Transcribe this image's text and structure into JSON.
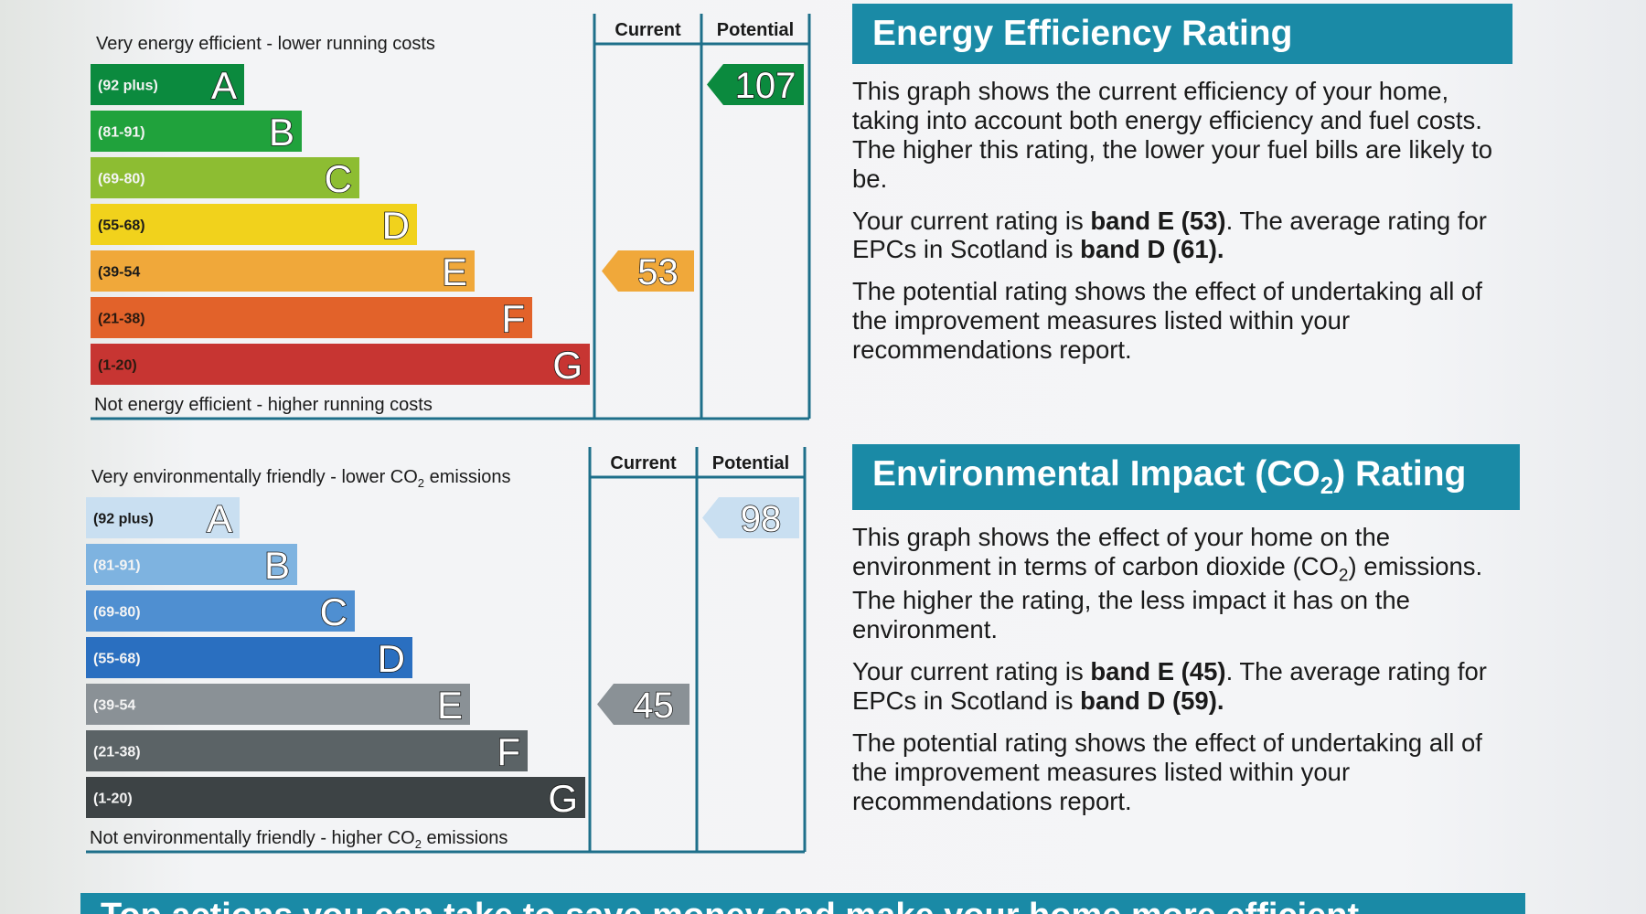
{
  "chart_data": [
    {
      "type": "bar",
      "top_label": "Very energy efficient - lower running costs",
      "bottom_label": "Not energy efficient - higher running costs",
      "column_headers": [
        "Current",
        "Potential"
      ],
      "bands": [
        {
          "letter": "A",
          "range": "(92 plus)",
          "color": "#0b8a3e"
        },
        {
          "letter": "B",
          "range": "(81-91)",
          "color": "#20a23c"
        },
        {
          "letter": "C",
          "range": "(69-80)",
          "color": "#8dbd32"
        },
        {
          "letter": "D",
          "range": "(55-68)",
          "color": "#f1d21c"
        },
        {
          "letter": "E",
          "range": "(39-54",
          "color": "#f0a83a"
        },
        {
          "letter": "F",
          "range": "(21-38)",
          "color": "#e2622a"
        },
        {
          "letter": "G",
          "range": "(1-20)",
          "color": "#c73532"
        }
      ],
      "current": {
        "value": 53,
        "band": "E",
        "color": "#f0a83a"
      },
      "potential": {
        "value": 107,
        "band": "A",
        "color": "#0b8a3e"
      }
    },
    {
      "type": "bar",
      "top_label": "Very environmentally friendly - lower CO",
      "top_label_sub": "2",
      "top_label_tail": " emissions",
      "bottom_label": "Not environmentally friendly - higher CO",
      "bottom_label_sub": "2",
      "bottom_label_tail": " emissions",
      "column_headers": [
        "Current",
        "Potential"
      ],
      "bands": [
        {
          "letter": "A",
          "range": "(92 plus)",
          "color": "#c9dff1"
        },
        {
          "letter": "B",
          "range": "(81-91)",
          "color": "#7eb3e0"
        },
        {
          "letter": "C",
          "range": "(69-80)",
          "color": "#4f8fd1"
        },
        {
          "letter": "D",
          "range": "(55-68)",
          "color": "#2a6fc0"
        },
        {
          "letter": "E",
          "range": "(39-54",
          "color": "#8a9196"
        },
        {
          "letter": "F",
          "range": "(21-38)",
          "color": "#5b6366"
        },
        {
          "letter": "G",
          "range": "(1-20)",
          "color": "#3d4345"
        }
      ],
      "current": {
        "value": 45,
        "band": "E",
        "color": "#8a9196"
      },
      "potential": {
        "value": 98,
        "band": "A",
        "color": "#c9dff1"
      }
    }
  ],
  "energy_panel": {
    "title": "Energy Efficiency Rating",
    "p1": "This graph shows the current efficiency of your home, taking into account both energy efficiency and fuel costs. The higher this rating, the lower your fuel bills are likely to be.",
    "p2_a": "Your current rating is ",
    "p2_b": "band E (53)",
    "p2_c": ". The average rating for EPCs in Scotland is ",
    "p2_d": "band D (61).",
    "p3": "The potential rating shows the effect of undertaking all of the improvement measures listed within your recommendations report."
  },
  "env_panel": {
    "title_a": "Environmental Impact (CO",
    "title_sub": "2",
    "title_b": ") Rating",
    "p1_a": "This graph shows the effect of your home on the environment in terms of carbon dioxide (CO",
    "p1_sub": "2",
    "p1_b": ") emissions. The higher the rating, the less impact it has on the environment.",
    "p2_a": "Your current rating is ",
    "p2_b": "band E (45)",
    "p2_c": ". The average rating for EPCs in Scotland is ",
    "p2_d": "band D (59).",
    "p3": "The potential rating shows the effect of undertaking all of the improvement measures listed within your recommendations report."
  },
  "bottom_banner": "Top actions you can take to save money and make your home more efficient"
}
